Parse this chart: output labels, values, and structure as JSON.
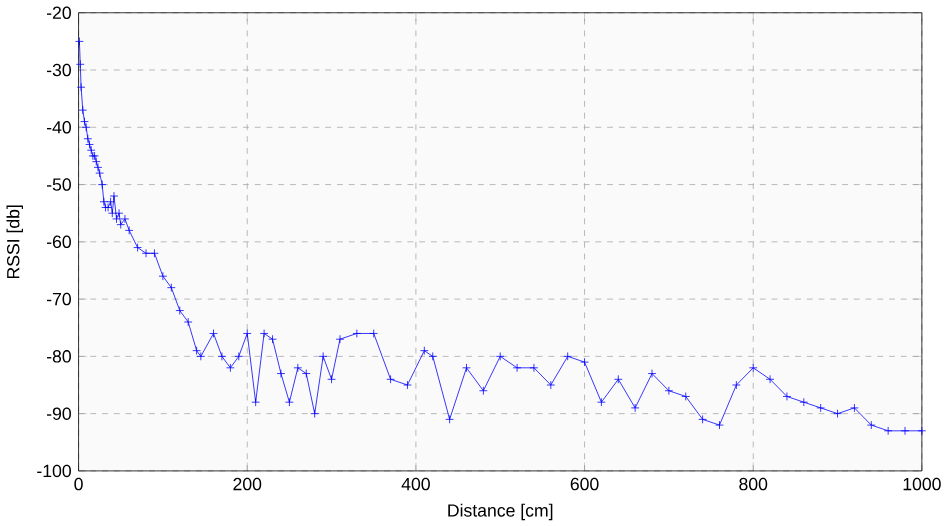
{
  "chart_data": {
    "type": "line",
    "xlabel": "Distance [cm]",
    "ylabel": "RSSI [db]",
    "xlim": [
      0,
      1000
    ],
    "ylim": [
      -100,
      -20
    ],
    "xticks": [
      0,
      200,
      400,
      600,
      800,
      1000
    ],
    "yticks": [
      -100,
      -90,
      -80,
      -70,
      -60,
      -50,
      -40,
      -30,
      -20
    ],
    "grid": true,
    "marker": "cross",
    "line_style": "solid",
    "x": [
      1,
      2,
      3,
      5,
      7,
      9,
      11,
      13,
      15,
      17,
      19,
      21,
      23,
      25,
      28,
      30,
      32,
      35,
      38,
      40,
      42,
      45,
      48,
      50,
      55,
      60,
      70,
      80,
      90,
      100,
      110,
      120,
      130,
      140,
      145,
      160,
      170,
      180,
      190,
      200,
      210,
      220,
      230,
      240,
      250,
      260,
      270,
      280,
      290,
      300,
      310,
      330,
      350,
      370,
      390,
      410,
      420,
      440,
      460,
      480,
      500,
      520,
      540,
      560,
      580,
      600,
      620,
      640,
      660,
      680,
      700,
      720,
      740,
      760,
      780,
      800,
      820,
      840,
      860,
      880,
      900,
      920,
      940,
      960,
      980,
      1000
    ],
    "series": [
      {
        "color": "#0000ff",
        "values": [
          -25,
          -29,
          -33,
          -37,
          -39,
          -40,
          -42,
          -43,
          -44,
          -45,
          -45,
          -46,
          -47,
          -48,
          -50,
          -53,
          -54,
          -54,
          -53,
          -55,
          -52,
          -56,
          -55,
          -57,
          -56,
          -58,
          -61,
          -62,
          -62,
          -66,
          -68,
          -72,
          -74,
          -79,
          -80,
          -76,
          -80,
          -82,
          -80,
          -76,
          -88,
          -76,
          -77,
          -83,
          -88,
          -82,
          -83,
          -90,
          -80,
          -84,
          -77,
          -76,
          -76,
          -84,
          -85,
          -79,
          -80,
          -91,
          -82,
          -86,
          -80,
          -82,
          -82,
          -85,
          -80,
          -81,
          -88,
          -84,
          -89,
          -83,
          -86,
          -87,
          -91,
          -92,
          -85,
          -82,
          -84,
          -87,
          -88,
          -89,
          -90,
          -89,
          -92,
          -93,
          -93,
          -93
        ]
      }
    ]
  }
}
